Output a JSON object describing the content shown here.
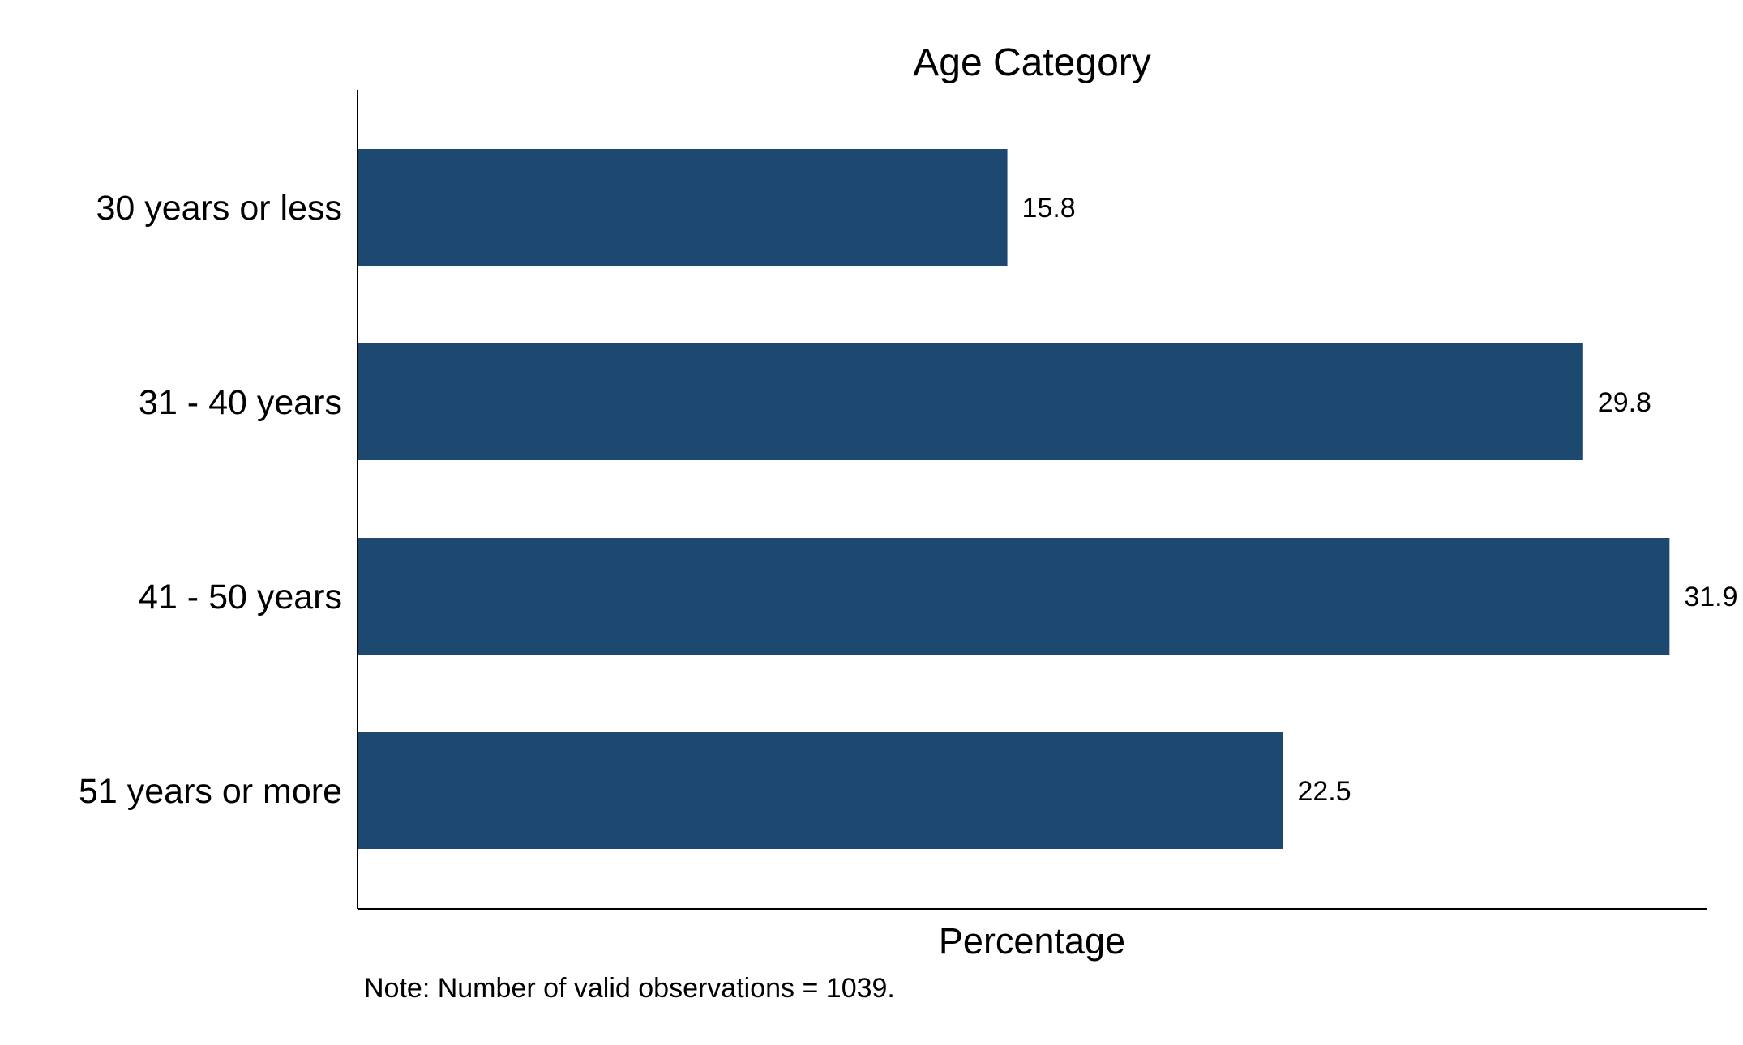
{
  "chart_data": {
    "type": "bar",
    "orientation": "horizontal",
    "title": "Age Category",
    "xlabel": "Percentage",
    "ylabel": "",
    "categories": [
      "30 years or less",
      "31 - 40 years",
      "41 - 50 years",
      "51 years or more"
    ],
    "values": [
      15.8,
      29.8,
      31.9,
      22.5
    ],
    "value_labels": [
      "15.8",
      "29.8",
      "31.9",
      "22.5"
    ],
    "xlim": [
      0,
      32.8
    ],
    "grid": false,
    "legend": "none",
    "bar_color": "#1d4870",
    "note": "Note: Number of valid observations = 1039."
  }
}
